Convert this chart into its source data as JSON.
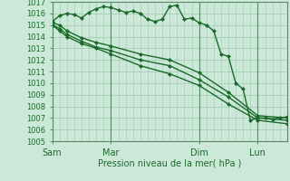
{
  "background_color": "#cce8d8",
  "grid_color": "#a0c8b0",
  "line_color": "#1a6b2a",
  "marker_color": "#1a6b2a",
  "xlabel": "Pression niveau de la mer( hPa )",
  "ylim": [
    1005,
    1017
  ],
  "yticks": [
    1005,
    1006,
    1007,
    1008,
    1009,
    1010,
    1011,
    1012,
    1013,
    1014,
    1015,
    1016,
    1017
  ],
  "xtick_labels": [
    "Sam",
    "Mar",
    "Dim",
    "Lun"
  ],
  "xtick_positions": [
    0,
    48,
    120,
    168
  ],
  "vline_positions": [
    0,
    48,
    120,
    168
  ],
  "total_hours": 192,
  "series": [
    {
      "x": [
        0,
        6,
        12,
        18,
        24,
        30,
        36,
        42,
        48,
        54,
        60,
        66,
        72,
        78,
        84,
        90,
        96,
        102,
        108,
        114,
        120,
        126,
        132,
        138,
        144,
        150,
        156,
        162,
        168,
        174,
        180,
        186,
        192
      ],
      "y": [
        1015.3,
        1015.8,
        1016.0,
        1015.9,
        1015.6,
        1016.1,
        1016.4,
        1016.6,
        1016.5,
        1016.3,
        1016.1,
        1016.2,
        1016.0,
        1015.5,
        1015.3,
        1015.5,
        1016.6,
        1016.7,
        1015.5,
        1015.6,
        1015.2,
        1015.0,
        1014.5,
        1012.5,
        1012.3,
        1010.0,
        1009.5,
        1006.8,
        1007.0,
        1007.0,
        1006.9,
        1007.0,
        1007.1
      ],
      "marker": "D",
      "markersize": 2.0,
      "linewidth": 1.0
    },
    {
      "x": [
        0,
        6,
        12,
        24,
        36,
        48,
        72,
        96,
        120,
        144,
        168,
        192
      ],
      "y": [
        1015.2,
        1015.0,
        1014.5,
        1013.9,
        1013.5,
        1013.2,
        1012.5,
        1012.0,
        1010.9,
        1009.2,
        1007.2,
        1007.0
      ],
      "marker": "D",
      "markersize": 2.0,
      "linewidth": 1.0
    },
    {
      "x": [
        0,
        6,
        12,
        24,
        36,
        48,
        72,
        96,
        120,
        144,
        168,
        192
      ],
      "y": [
        1015.0,
        1014.7,
        1014.2,
        1013.6,
        1013.1,
        1012.8,
        1012.0,
        1011.5,
        1010.3,
        1008.8,
        1007.0,
        1006.8
      ],
      "marker": "D",
      "markersize": 2.0,
      "linewidth": 1.0
    },
    {
      "x": [
        0,
        6,
        12,
        24,
        36,
        48,
        72,
        96,
        120,
        144,
        168,
        192
      ],
      "y": [
        1015.0,
        1014.5,
        1014.0,
        1013.4,
        1013.0,
        1012.5,
        1011.5,
        1010.8,
        1009.8,
        1008.2,
        1006.8,
        1006.5
      ],
      "marker": "D",
      "markersize": 2.0,
      "linewidth": 1.0
    }
  ]
}
